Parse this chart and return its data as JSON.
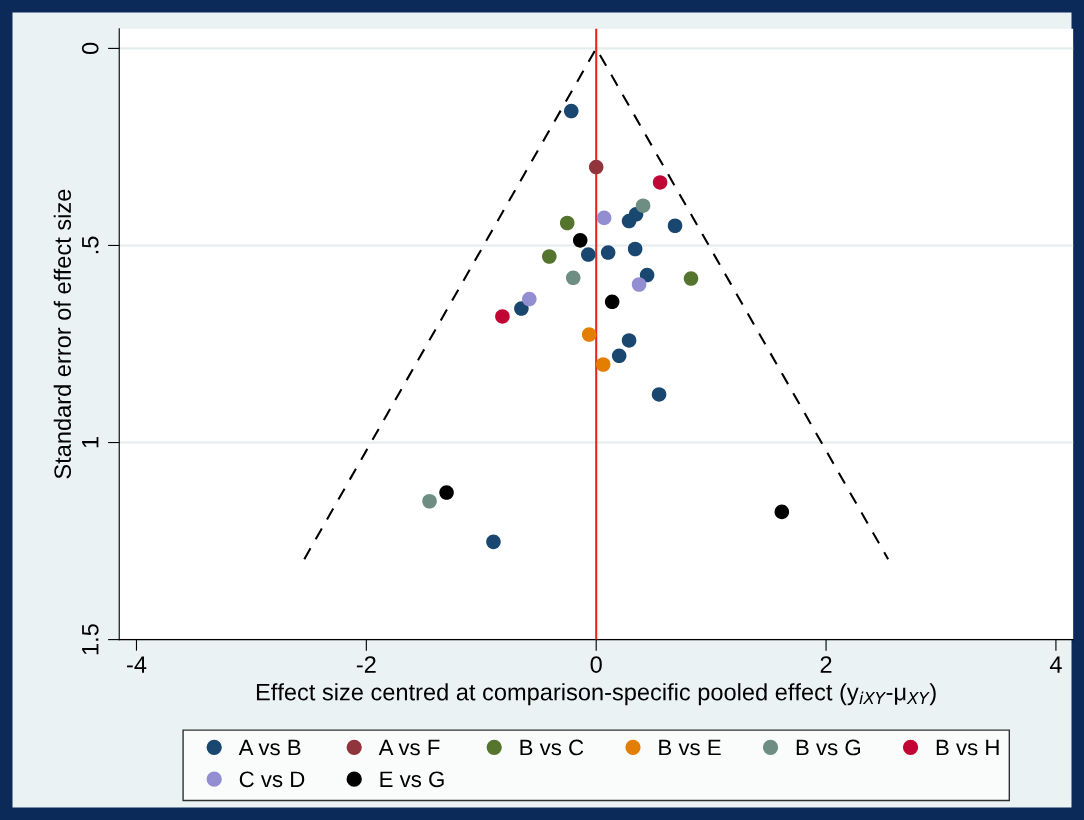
{
  "chart_data": {
    "type": "scatter",
    "xlabel": "Effect size centred at comparison-specific pooled effect (y$_{iXY}$-μ$_{XY}$)",
    "ylabel": "Standard error of effect size",
    "xlim": [
      -4.15,
      4.15
    ],
    "xticks": [
      {
        "value": -4,
        "label": "-4"
      },
      {
        "value": -2,
        "label": "-2"
      },
      0,
      2,
      4
    ],
    "ylim": [
      1.5,
      -0.05
    ],
    "yticks": [
      0,
      {
        "value": 0.5,
        "label": ".5"
      },
      1,
      1.5
    ],
    "grid": "y",
    "legend": "bottom",
    "marker": "circle",
    "ref_lines": [
      {
        "axis": "x",
        "value": 0,
        "color": "#e8261f",
        "line_style": "solid"
      }
    ],
    "series": [
      {
        "name": "A vs B",
        "color": "#1a476f",
        "x": [
          -0.217,
          0.286,
          0.347,
          0.686,
          -0.069,
          0.104,
          0.339,
          0.443,
          -0.651,
          0.286,
          0.2,
          0.547,
          -0.894
        ],
        "values": [
          0.159,
          0.438,
          0.421,
          0.45,
          0.523,
          0.518,
          0.509,
          0.575,
          0.66,
          0.741,
          0.78,
          0.878,
          1.252
        ]
      },
      {
        "name": "A vs F",
        "color": "#90353b",
        "x": [
          0.0
        ],
        "values": [
          0.301
        ]
      },
      {
        "name": "B vs C",
        "color": "#55752f",
        "x": [
          -0.252,
          -0.408,
          0.825
        ],
        "values": [
          0.443,
          0.528,
          0.584
        ]
      },
      {
        "name": "B vs E",
        "color": "#e37e00",
        "x": [
          -0.061,
          0.061
        ],
        "values": [
          0.726,
          0.802
        ]
      },
      {
        "name": "B vs G",
        "color": "#6e8e84",
        "x": [
          0.408,
          -0.2,
          -1.45
        ],
        "values": [
          0.399,
          0.582,
          1.149
        ]
      },
      {
        "name": "B vs H",
        "color": "#c10534",
        "x": [
          0.556,
          -0.816
        ],
        "values": [
          0.34,
          0.68
        ]
      },
      {
        "name": "C vs D",
        "color": "#938dd2",
        "x": [
          0.069,
          0.373,
          -0.582
        ],
        "values": [
          0.43,
          0.599,
          0.636
        ]
      },
      {
        "name": "E vs G",
        "color": "#000000",
        "x": [
          -0.139,
          0.139,
          -1.302,
          1.615
        ],
        "values": [
          0.487,
          0.643,
          1.127,
          1.176
        ]
      },
      {
        "type": "line",
        "color": "#000000",
        "line_style": "dashed",
        "marker": "none",
        "x": [
          -2.54,
          0,
          2.54
        ],
        "values": [
          1.296,
          0,
          1.296
        ]
      }
    ]
  }
}
